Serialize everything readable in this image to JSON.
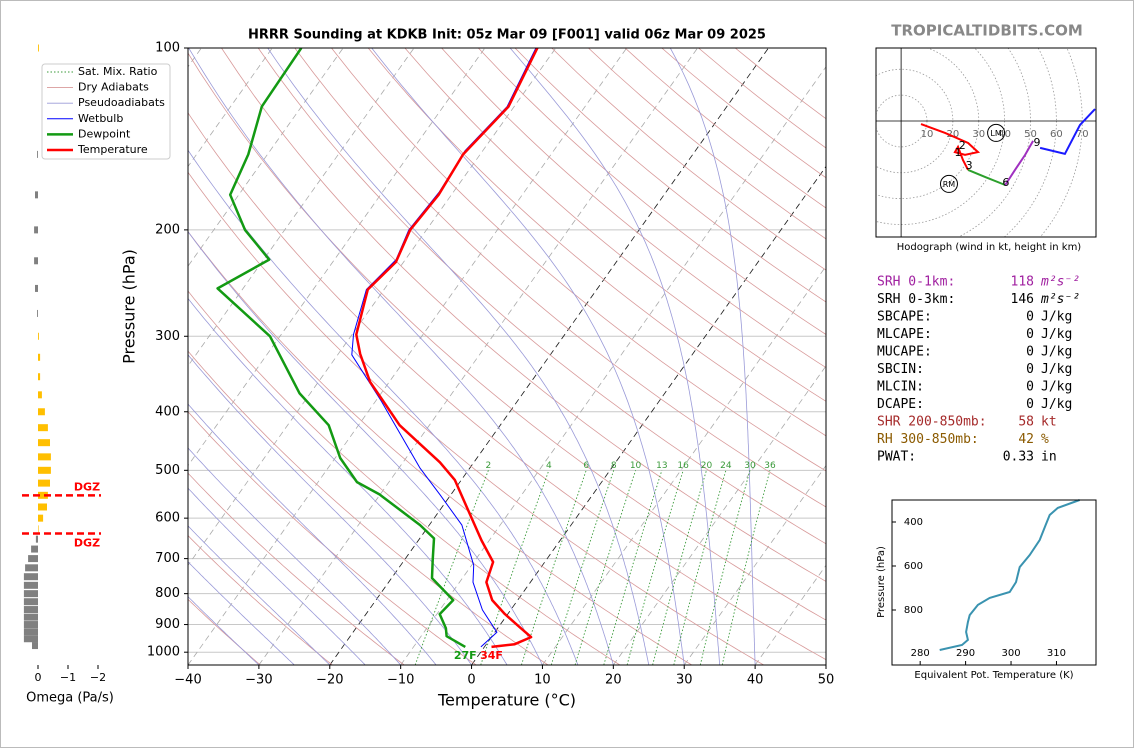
{
  "brand": "TROPICALTIDBITS.COM",
  "chart_data": [
    {
      "type": "skewt",
      "title": "HRRR Sounding at KDKB Init: 05z Mar 09 [F001] valid 06z Mar 09 2025",
      "xlabel": "Temperature (°C)",
      "ylabel": "Pressure (hPa)",
      "xlim": [
        -40,
        50
      ],
      "ylim": [
        1050,
        100
      ],
      "log_y": true,
      "grid": true,
      "legend": "upper left",
      "xticks": [
        {
          "value": -40,
          "label": "−40"
        },
        {
          "value": -30,
          "label": "−30"
        },
        {
          "value": -20,
          "label": "−20"
        },
        {
          "value": -10,
          "label": "−10"
        },
        0,
        10,
        20,
        30,
        40,
        50
      ],
      "yticks": [
        100,
        200,
        300,
        400,
        500,
        600,
        700,
        800,
        900,
        1000
      ],
      "reference_lines": [
        {
          "name": "Sat. Mix. Ratio",
          "color": "#3a9a3a",
          "style": "dotted"
        },
        {
          "name": "Dry Adiabats",
          "color": "#d89a9a",
          "style": "solid"
        },
        {
          "name": "Pseudoadiabats",
          "color": "#9a9ad8",
          "style": "solid"
        }
      ],
      "mixing_ratio_labels": [
        2,
        4,
        6,
        8,
        10,
        13,
        16,
        20,
        24,
        30,
        36
      ],
      "series": [
        {
          "name": "Wetbulb",
          "color": "#0000ff",
          "width": 1,
          "pressure": [
            980,
            927,
            851,
            766,
            718,
            616,
            548,
            496,
            384,
            322,
            298,
            251,
            224,
            200,
            173,
            148,
            125,
            100
          ],
          "values": [
            -0.5,
            0.3,
            -4.0,
            -8.1,
            -9.7,
            -15.4,
            -21.6,
            -27.0,
            -39.2,
            -48.0,
            -49.8,
            -52.5,
            -51.3,
            -52.5,
            -52.0,
            -52.5,
            -51.0,
            -52.8
          ]
        },
        {
          "name": "Dewpoint",
          "color": "#139a13",
          "width": 2.5,
          "surface_label": "27F",
          "pressure": [
            980,
            941,
            913,
            865,
            820,
            754,
            704,
            648,
            616,
            548,
            523,
            477,
            421,
            373,
            300,
            250,
            224,
            200,
            175,
            150,
            125,
            100
          ],
          "values": [
            -2.7,
            -6.4,
            -7.3,
            -9.6,
            -9.1,
            -14.3,
            -16.0,
            -18.0,
            -21.3,
            -30.1,
            -34.5,
            -39.3,
            -44.2,
            -51.5,
            -61.4,
            -73.6,
            -69.2,
            -75.6,
            -81.2,
            -82.7,
            -85.6,
            -85.9
          ]
        },
        {
          "name": "Temperature",
          "color": "#ff0000",
          "width": 2.5,
          "surface_label": "34F",
          "pressure": [
            980,
            970,
            944,
            909,
            865,
            820,
            766,
            709,
            653,
            589,
            519,
            485,
            421,
            357,
            321,
            298,
            251,
            226,
            200,
            175,
            150,
            125,
            100
          ],
          "values": [
            1.0,
            4.0,
            5.6,
            3.0,
            -0.4,
            -3.6,
            -6.2,
            -7.3,
            -11.1,
            -15.5,
            -20.9,
            -24.8,
            -34.2,
            -42.7,
            -46.9,
            -49.4,
            -52.3,
            -51.1,
            -52.3,
            -51.8,
            -52.4,
            -50.8,
            -52.6
          ]
        }
      ]
    },
    {
      "type": "omega-bar",
      "xlabel": "Omega (Pa/s)",
      "xlim": [
        0.6,
        -2.2
      ],
      "ylim": [
        1050,
        100
      ],
      "log_y": true,
      "xticks": [
        0,
        {
          "value": -1,
          "label": "−1"
        },
        {
          "value": -2,
          "label": "−2"
        }
      ],
      "positive_color": "#808080",
      "negative_color": "#ffbf00",
      "pressure": [
        975,
        950,
        925,
        900,
        875,
        850,
        825,
        800,
        775,
        750,
        725,
        700,
        675,
        650,
        625,
        600,
        575,
        550,
        525,
        500,
        475,
        450,
        425,
        400,
        375,
        350,
        325,
        300,
        275,
        250,
        225,
        200,
        175,
        150,
        125,
        100
      ],
      "values": [
        0.2,
        0.47,
        0.47,
        0.47,
        0.47,
        0.47,
        0.47,
        0.47,
        0.47,
        0.47,
        0.43,
        0.33,
        0.23,
        0.07,
        -0.02,
        -0.17,
        -0.3,
        -0.33,
        -0.4,
        -0.43,
        -0.43,
        -0.4,
        -0.33,
        -0.23,
        -0.13,
        -0.07,
        -0.07,
        -0.03,
        0.03,
        0.1,
        0.13,
        0.13,
        0.1,
        0.03,
        0.0,
        -0.03
      ],
      "dgz": [
        {
          "label": "DGZ",
          "pressure": 550
        },
        {
          "label": "DGZ",
          "pressure": 636
        }
      ],
      "dgz_color": "#ff0000"
    },
    {
      "type": "hodograph",
      "caption": "Hodograph (wind in kt, height in km)",
      "xlim": [
        -9.7,
        75.3
      ],
      "ylim": [
        -44.8,
        28.2
      ],
      "rings": [
        10,
        20,
        30,
        40,
        50,
        60,
        70
      ],
      "segments": [
        {
          "color": "#ff0000",
          "u": [
            7.7,
            17.0,
            25.9,
            29.7,
            24.7,
            20.8,
            22.0,
            23.9,
            25.9
          ],
          "v": [
            -1.2,
            -4.6,
            -8.5,
            -12.0,
            -13.1,
            -12.0,
            -10.0,
            -15.1,
            -18.9
          ]
        },
        {
          "color": "#2ca02c",
          "u": [
            25.9,
            32.4,
            40.2
          ],
          "v": [
            -18.9,
            -21.6,
            -24.7
          ]
        },
        {
          "color": "#a030c0",
          "u": [
            40.2,
            44.0,
            47.9,
            51.0
          ],
          "v": [
            -24.7,
            -18.9,
            -13.1,
            -7.7
          ]
        },
        {
          "color": "#1a1aff",
          "u": [
            53.7,
            63.3,
            69.1,
            74.9
          ],
          "v": [
            -10.4,
            -12.7,
            -1.5,
            4.6
          ]
        }
      ],
      "height_labels": [
        {
          "label": "1",
          "u": 22.0,
          "v": -12.4
        },
        {
          "label": "2",
          "u": 23.6,
          "v": -9.7
        },
        {
          "label": "3",
          "u": 26.3,
          "v": -17.4
        },
        {
          "label": "6",
          "u": 40.5,
          "v": -23.9
        },
        {
          "label": "9",
          "u": 52.5,
          "v": -8.5
        }
      ],
      "storm_motion": [
        {
          "label": "LM",
          "u": 36.7,
          "v": -4.6
        },
        {
          "label": "RM",
          "u": 18.5,
          "v": -24.3
        }
      ]
    },
    {
      "type": "line",
      "xlabel": "Equivalent Pot. Temperature (K)",
      "ylabel": "Pressure (hPa)",
      "xlim": [
        273.8,
        318.7
      ],
      "ylim": [
        1050,
        300
      ],
      "xticks": [
        280,
        290,
        300,
        310
      ],
      "yticks": [
        400,
        600,
        800
      ],
      "series": [
        {
          "color": "#3a93b0",
          "pressure": [
            982,
            959,
            936,
            900,
            855,
            823,
            777,
            745,
            718,
            673,
            605,
            550,
            482,
            414,
            368,
            336,
            300
          ],
          "values": [
            284.3,
            289.2,
            290.5,
            290.1,
            290.5,
            290.9,
            292.7,
            295.3,
            299.7,
            301.1,
            301.9,
            304.1,
            306.3,
            307.6,
            308.5,
            310.3,
            315.1
          ]
        }
      ]
    }
  ],
  "parameters": [
    {
      "label": "SRH 0-1km:",
      "value": 118,
      "unit": "m²s⁻²",
      "color": "#a020a0"
    },
    {
      "label": "SRH 0-3km:",
      "value": 146,
      "unit": "m²s⁻²",
      "color": "#000000"
    },
    {
      "label": "SBCAPE:",
      "value": 0,
      "unit": "J/kg",
      "color": "#000000"
    },
    {
      "label": "MLCAPE:",
      "value": 0,
      "unit": "J/kg",
      "color": "#000000"
    },
    {
      "label": "MUCAPE:",
      "value": 0,
      "unit": "J/kg",
      "color": "#000000"
    },
    {
      "label": "SBCIN:",
      "value": 0,
      "unit": "J/kg",
      "color": "#000000"
    },
    {
      "label": "MLCIN:",
      "value": 0,
      "unit": "J/kg",
      "color": "#000000"
    },
    {
      "label": "DCAPE:",
      "value": 0,
      "unit": "J/kg",
      "color": "#000000"
    },
    {
      "label": "SHR 200-850mb:",
      "value": 58,
      "unit": "kt",
      "color": "#a52a2a"
    },
    {
      "label": "RH 300-850mb:",
      "value": 42,
      "unit": "%",
      "color": "#8b5a00"
    },
    {
      "label": "PWAT:",
      "value": 0.33,
      "unit": "in",
      "color": "#000000"
    }
  ]
}
